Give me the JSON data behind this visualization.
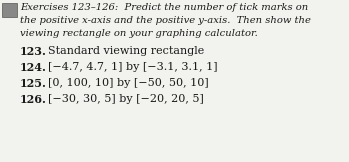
{
  "header_lines": [
    "Exercises 123–126:  Predict the number of tick marks on",
    "the positive x-axis and the positive y-axis.  Then show the",
    "viewing rectangle on your graphing calculator."
  ],
  "items": [
    {
      "num": "123.",
      "text": "Standard viewing rectangle"
    },
    {
      "num": "124.",
      "text": "[−4.7, 4.7, 1] by [−3.1, 3.1, 1]"
    },
    {
      "num": "125.",
      "text": "[0, 100, 10] by [−50, 50, 10]"
    },
    {
      "num": "126.",
      "text": "[−30, 30, 5] by [−20, 20, 5]"
    }
  ],
  "bg_color": "#f2f2ee",
  "text_color": "#1a1a1a",
  "header_fontsize": 7.2,
  "num_fontsize": 8.0,
  "item_fontsize": 8.0,
  "icon_color": "#888888",
  "icon_edge_color": "#555555"
}
